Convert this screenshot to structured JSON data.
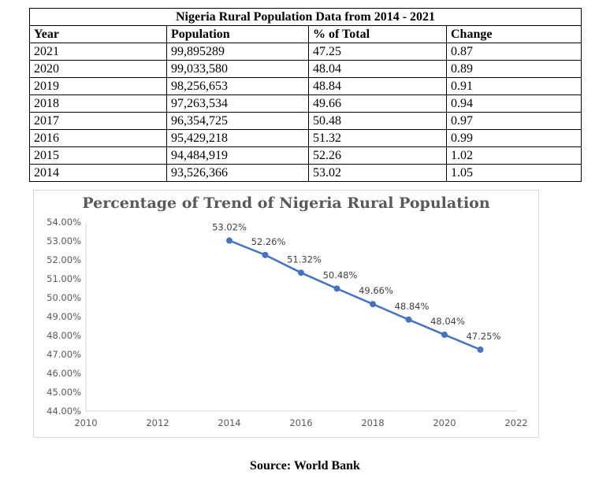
{
  "table": {
    "title": "Nigeria Rural Population Data from 2014 - 2021",
    "headers": [
      "Year",
      "Population",
      "% of Total",
      "Change"
    ],
    "rows": [
      [
        "2021",
        "99,895289",
        "47.25",
        "0.87"
      ],
      [
        "2020",
        "99,033,580",
        "48.04",
        "0.89"
      ],
      [
        "2019",
        "98,256,653",
        "48.84",
        "0.91"
      ],
      [
        "2018",
        "97,263,534",
        "49.66",
        "0.94"
      ],
      [
        "2017",
        "96,354,725",
        "50.48",
        "0.97"
      ],
      [
        "2016",
        "95,429,218",
        "51.32",
        "0.99"
      ],
      [
        "2015",
        "94,484,919",
        "52.26",
        "1.02"
      ],
      [
        "2014",
        "93,526,366",
        "53.02",
        "1.05"
      ]
    ]
  },
  "chart_data": {
    "type": "line",
    "title": "Percentage of Trend of Nigeria Rural Population",
    "xlabel": "",
    "ylabel": "",
    "x": [
      2014,
      2015,
      2016,
      2017,
      2018,
      2019,
      2020,
      2021
    ],
    "series": [
      {
        "values": [
          53.02,
          52.26,
          51.32,
          50.48,
          49.66,
          48.84,
          48.04,
          47.25
        ]
      }
    ],
    "data_labels": [
      "53.02%",
      "52.26%",
      "51.32%",
      "50.48%",
      "49.66%",
      "48.84%",
      "48.04%",
      "47.25%"
    ],
    "xlim": [
      2010,
      2022
    ],
    "ylim": [
      44,
      54
    ],
    "x_ticks": [
      "2010",
      "2012",
      "2014",
      "2016",
      "2018",
      "2020",
      "2022"
    ],
    "y_ticks": [
      "44.00%",
      "45.00%",
      "46.00%",
      "47.00%",
      "48.00%",
      "49.00%",
      "50.00%",
      "51.00%",
      "52.00%",
      "53.00%",
      "54.00%"
    ],
    "grid": false,
    "legend": "none",
    "line_color": "#4472c4"
  },
  "source": "Source: World Bank"
}
